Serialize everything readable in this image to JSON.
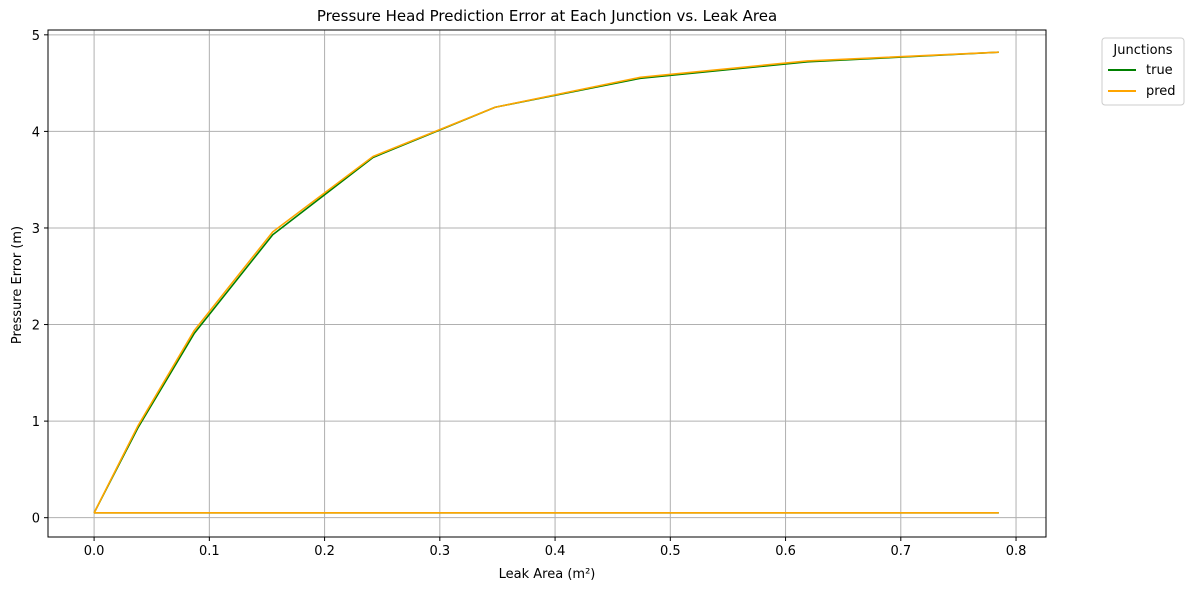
{
  "chart_data": {
    "type": "line",
    "title": "Pressure Head Prediction Error at Each Junction vs. Leak Area",
    "xlabel": "Leak Area (m²)",
    "ylabel": "Pressure Error (m)",
    "xlim": [
      -0.04,
      0.826
    ],
    "ylim": [
      -0.2,
      5.05
    ],
    "x_ticks": [
      0.0,
      0.1,
      0.2,
      0.3,
      0.4,
      0.5,
      0.6,
      0.7,
      0.8
    ],
    "x_tick_labels": [
      "0.0",
      "0.1",
      "0.2",
      "0.3",
      "0.4",
      "0.5",
      "0.6",
      "0.7",
      "0.8"
    ],
    "y_ticks": [
      0,
      1,
      2,
      3,
      4,
      5
    ],
    "y_tick_labels": [
      "0",
      "1",
      "2",
      "3",
      "4",
      "5"
    ],
    "grid": true,
    "legend": {
      "title": "Junctions",
      "placement": "outside-top-right",
      "entries": [
        {
          "label": "true",
          "color": "#008000"
        },
        {
          "label": "pred",
          "color": "#FFA500"
        }
      ]
    },
    "x": [
      0.0,
      0.038,
      0.087,
      0.155,
      0.242,
      0.348,
      0.474,
      0.619,
      0.785
    ],
    "series": [
      {
        "name": "true",
        "color": "#008000",
        "curves": [
          [
            0.05,
            0.93,
            1.91,
            2.93,
            3.73,
            4.25,
            4.55,
            4.72,
            4.82
          ],
          [
            0.05,
            0.05,
            0.05,
            0.05,
            0.05,
            0.05,
            0.05,
            0.05,
            0.05
          ]
        ]
      },
      {
        "name": "pred",
        "color": "#FFA500",
        "curves": [
          [
            0.05,
            0.95,
            1.94,
            2.96,
            3.74,
            4.25,
            4.56,
            4.73,
            4.82
          ],
          [
            0.05,
            0.05,
            0.05,
            0.05,
            0.05,
            0.05,
            0.05,
            0.05,
            0.05
          ]
        ]
      }
    ]
  }
}
